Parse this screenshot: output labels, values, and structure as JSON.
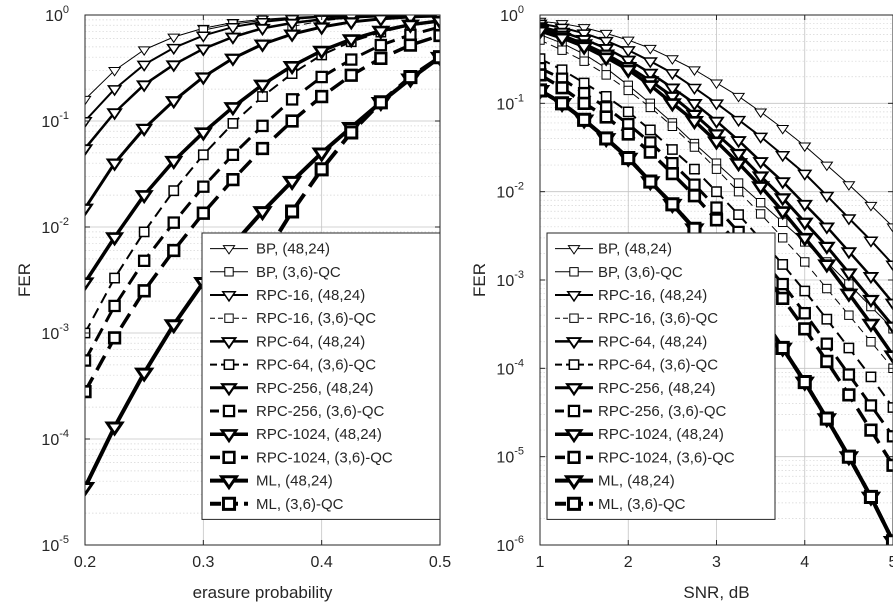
{
  "chart_data": [
    {
      "type": "line",
      "xlabel": "erasure probability",
      "ylabel": "FER",
      "xscale": "linear",
      "yscale": "log",
      "xlim": [
        0.2,
        0.5
      ],
      "ylim": [
        1e-05,
        1
      ],
      "grid": true,
      "legend_position": "bottom-right",
      "x_ticks": [
        "0.2",
        "0.3",
        "0.4",
        "0.5"
      ],
      "y_ticks": [
        {
          "base": "10",
          "exp": "-5"
        },
        {
          "base": "10",
          "exp": "-4"
        },
        {
          "base": "10",
          "exp": "-3"
        },
        {
          "base": "10",
          "exp": "-2"
        },
        {
          "base": "10",
          "exp": "-1"
        },
        {
          "base": "10",
          "exp": "0"
        }
      ],
      "series": [
        {
          "name": "BP, (48,24)",
          "marker": "triangle-down",
          "dashed": false,
          "weight": 1,
          "x": [
            0.2,
            0.225,
            0.25,
            0.275,
            0.3,
            0.325,
            0.35,
            0.375,
            0.4,
            0.425,
            0.45,
            0.475,
            0.5
          ],
          "y": [
            0.16,
            0.3,
            0.47,
            0.62,
            0.75,
            0.85,
            0.91,
            0.95,
            0.975,
            0.987,
            0.994,
            0.997,
            0.999
          ]
        },
        {
          "name": "BP, (3,6)-QC",
          "marker": "square",
          "dashed": false,
          "weight": 1,
          "x": [
            0.3,
            0.325,
            0.35,
            0.375,
            0.4,
            0.425,
            0.45,
            0.475,
            0.5
          ],
          "y": [
            0.72,
            0.82,
            0.89,
            0.94,
            0.965,
            0.98,
            0.99,
            0.995,
            0.998
          ]
        },
        {
          "name": "RPC-16, (48,24)",
          "marker": "triangle-down",
          "dashed": false,
          "weight": 2,
          "x": [
            0.2,
            0.225,
            0.25,
            0.275,
            0.3,
            0.325,
            0.35,
            0.375,
            0.4,
            0.425,
            0.45,
            0.475,
            0.5
          ],
          "y": [
            0.1,
            0.2,
            0.34,
            0.49,
            0.64,
            0.77,
            0.86,
            0.92,
            0.96,
            0.98,
            0.99,
            0.995,
            0.998
          ]
        },
        {
          "name": "RPC-16, (3,6)-QC",
          "marker": "square",
          "dashed": true,
          "weight": 1,
          "x": [
            0.375,
            0.4,
            0.425,
            0.45,
            0.475,
            0.5
          ],
          "y": [
            0.78,
            0.88,
            0.94,
            0.97,
            0.985,
            0.993
          ]
        },
        {
          "name": "RPC-64, (48,24)",
          "marker": "triangle-down",
          "dashed": false,
          "weight": 2.5,
          "x": [
            0.2,
            0.225,
            0.25,
            0.275,
            0.3,
            0.325,
            0.35,
            0.375,
            0.4,
            0.425,
            0.45,
            0.475,
            0.5
          ],
          "y": [
            0.055,
            0.12,
            0.22,
            0.34,
            0.48,
            0.62,
            0.75,
            0.84,
            0.91,
            0.95,
            0.975,
            0.988,
            0.995
          ]
        },
        {
          "name": "RPC-64, (3,6)-QC",
          "marker": "square",
          "dashed": true,
          "weight": 2,
          "x": [
            0.2,
            0.225,
            0.25,
            0.275,
            0.3,
            0.325,
            0.35,
            0.375,
            0.4,
            0.425,
            0.45,
            0.475,
            0.5
          ],
          "y": [
            0.001,
            0.0033,
            0.009,
            0.022,
            0.048,
            0.095,
            0.17,
            0.28,
            0.42,
            0.56,
            0.69,
            0.8,
            0.88
          ]
        },
        {
          "name": "RPC-256, (48,24)",
          "marker": "triangle-down",
          "dashed": false,
          "weight": 3,
          "x": [
            0.2,
            0.225,
            0.25,
            0.275,
            0.3,
            0.325,
            0.35,
            0.375,
            0.4,
            0.425,
            0.45,
            0.475,
            0.5
          ],
          "y": [
            0.015,
            0.04,
            0.085,
            0.155,
            0.26,
            0.39,
            0.53,
            0.66,
            0.77,
            0.86,
            0.92,
            0.96,
            0.98
          ]
        },
        {
          "name": "RPC-256, (3,6)-QC",
          "marker": "square",
          "dashed": true,
          "weight": 3,
          "x": [
            0.2,
            0.225,
            0.25,
            0.275,
            0.3,
            0.325,
            0.35,
            0.375,
            0.4,
            0.425,
            0.45,
            0.475,
            0.5
          ],
          "y": [
            0.00055,
            0.0018,
            0.0048,
            0.011,
            0.024,
            0.048,
            0.09,
            0.16,
            0.26,
            0.38,
            0.52,
            0.65,
            0.77
          ]
        },
        {
          "name": "RPC-1024, (48,24)",
          "marker": "triangle-down",
          "dashed": false,
          "weight": 3.5,
          "x": [
            0.2,
            0.225,
            0.25,
            0.275,
            0.3,
            0.325,
            0.35,
            0.375,
            0.4,
            0.425,
            0.45,
            0.475,
            0.5
          ],
          "y": [
            0.003,
            0.008,
            0.02,
            0.042,
            0.078,
            0.135,
            0.22,
            0.33,
            0.46,
            0.59,
            0.71,
            0.81,
            0.88
          ]
        },
        {
          "name": "RPC-1024, (3,6)-QC",
          "marker": "square",
          "dashed": true,
          "weight": 3.5,
          "x": [
            0.2,
            0.225,
            0.25,
            0.275,
            0.3,
            0.325,
            0.35,
            0.375,
            0.4,
            0.425,
            0.45,
            0.475,
            0.5
          ],
          "y": [
            0.00028,
            0.0009,
            0.0025,
            0.006,
            0.0135,
            0.028,
            0.055,
            0.1,
            0.17,
            0.27,
            0.39,
            0.52,
            0.64
          ]
        },
        {
          "name": "ML, (48,24)",
          "marker": "triangle-down",
          "dashed": false,
          "weight": 4,
          "x": [
            0.2,
            0.225,
            0.25,
            0.275,
            0.3,
            0.325,
            0.35,
            0.375,
            0.4,
            0.425,
            0.45,
            0.475,
            0.5
          ],
          "y": [
            3.5e-05,
            0.00013,
            0.00042,
            0.0012,
            0.003,
            0.0068,
            0.014,
            0.027,
            0.05,
            0.087,
            0.15,
            0.25,
            0.4
          ]
        },
        {
          "name": "ML, (3,6)-QC",
          "marker": "square",
          "dashed": true,
          "weight": 4,
          "x": [
            0.325,
            0.35,
            0.375,
            0.4,
            0.425,
            0.45,
            0.475,
            0.5
          ],
          "y": [
            0.0011,
            0.005,
            0.014,
            0.035,
            0.078,
            0.15,
            0.26,
            0.4
          ]
        }
      ]
    },
    {
      "type": "line",
      "xlabel": "SNR, dB",
      "ylabel": "FER",
      "xscale": "linear",
      "yscale": "log",
      "xlim": [
        1,
        5
      ],
      "ylim": [
        1e-06,
        1
      ],
      "grid": true,
      "legend_position": "bottom-left",
      "x_ticks": [
        "1",
        "2",
        "3",
        "4",
        "5"
      ],
      "y_ticks": [
        {
          "base": "10",
          "exp": "-6"
        },
        {
          "base": "10",
          "exp": "-5"
        },
        {
          "base": "10",
          "exp": "-4"
        },
        {
          "base": "10",
          "exp": "-3"
        },
        {
          "base": "10",
          "exp": "-2"
        },
        {
          "base": "10",
          "exp": "-1"
        },
        {
          "base": "10",
          "exp": "0"
        }
      ],
      "series": [
        {
          "name": "BP, (48,24)",
          "marker": "triangle-down",
          "dashed": false,
          "weight": 1,
          "x": [
            1,
            1.25,
            1.5,
            1.75,
            2,
            2.25,
            2.5,
            2.75,
            3,
            3.25,
            3.5,
            3.75,
            4,
            4.25,
            4.5,
            4.75,
            5
          ],
          "y": [
            0.85,
            0.8,
            0.72,
            0.62,
            0.52,
            0.42,
            0.32,
            0.24,
            0.17,
            0.12,
            0.08,
            0.052,
            0.033,
            0.02,
            0.012,
            0.007,
            0.004
          ]
        },
        {
          "name": "BP, (3,6)-QC",
          "marker": "square",
          "dashed": false,
          "weight": 1,
          "x": [
            1,
            1.25,
            1.5,
            1.75,
            2,
            2.25,
            2.5,
            2.75,
            3,
            3.25,
            3.5,
            3.75,
            4,
            4.25,
            4.5,
            4.75,
            5
          ],
          "y": [
            0.6,
            0.48,
            0.36,
            0.25,
            0.16,
            0.1,
            0.06,
            0.035,
            0.021,
            0.0125,
            0.0075,
            0.0045,
            0.0027,
            0.0016,
            0.0009,
            0.0005,
            0.00028
          ]
        },
        {
          "name": "RPC-16, (48,24)",
          "marker": "triangle-down",
          "dashed": false,
          "weight": 2,
          "x": [
            1,
            1.25,
            1.5,
            1.75,
            2,
            2.25,
            2.5,
            2.75,
            3,
            3.25,
            3.5,
            3.75,
            4,
            4.25,
            4.5,
            4.75,
            5
          ],
          "y": [
            0.8,
            0.72,
            0.62,
            0.51,
            0.4,
            0.3,
            0.22,
            0.15,
            0.1,
            0.065,
            0.042,
            0.026,
            0.016,
            0.009,
            0.005,
            0.0028,
            0.0015
          ]
        },
        {
          "name": "RPC-16, (3,6)-QC",
          "marker": "square",
          "dashed": true,
          "weight": 1,
          "x": [
            1,
            1.25,
            1.5,
            1.75,
            2,
            2.25,
            2.5,
            2.75,
            3,
            3.25,
            3.5,
            3.75,
            4,
            4.25,
            4.5,
            4.75,
            5
          ],
          "y": [
            0.52,
            0.4,
            0.3,
            0.21,
            0.14,
            0.09,
            0.055,
            0.032,
            0.018,
            0.01,
            0.0056,
            0.003,
            0.0016,
            0.0008,
            0.0004,
            0.0002,
            0.0001
          ]
        },
        {
          "name": "RPC-64, (48,24)",
          "marker": "triangle-down",
          "dashed": false,
          "weight": 2.5,
          "x": [
            1,
            1.25,
            1.5,
            1.75,
            2,
            2.25,
            2.5,
            2.75,
            3,
            3.25,
            3.5,
            3.75,
            4,
            4.25,
            4.5,
            4.75,
            5
          ],
          "y": [
            0.74,
            0.64,
            0.53,
            0.42,
            0.31,
            0.22,
            0.15,
            0.1,
            0.063,
            0.038,
            0.022,
            0.013,
            0.0072,
            0.004,
            0.0021,
            0.0011,
            0.00055
          ]
        },
        {
          "name": "RPC-64, (3,6)-QC",
          "marker": "square",
          "dashed": true,
          "weight": 2,
          "x": [
            1,
            1.25,
            1.5,
            1.75,
            2,
            2.25,
            2.5,
            2.75,
            3,
            3.25,
            3.5,
            3.75,
            4,
            4.25,
            4.5,
            4.75,
            5
          ],
          "y": [
            0.32,
            0.24,
            0.17,
            0.12,
            0.08,
            0.05,
            0.03,
            0.018,
            0.01,
            0.0055,
            0.0029,
            0.0015,
            0.00075,
            0.00036,
            0.00017,
            8e-05,
            3.6e-05
          ]
        },
        {
          "name": "RPC-256, (48,24)",
          "marker": "triangle-down",
          "dashed": false,
          "weight": 3,
          "x": [
            1,
            1.25,
            1.5,
            1.75,
            2,
            2.25,
            2.5,
            2.75,
            3,
            3.25,
            3.5,
            3.75,
            4,
            4.25,
            4.5,
            4.75,
            5
          ],
          "y": [
            0.7,
            0.59,
            0.47,
            0.36,
            0.26,
            0.18,
            0.12,
            0.075,
            0.045,
            0.027,
            0.015,
            0.0085,
            0.0045,
            0.0024,
            0.0012,
            0.0006,
            0.0003
          ]
        },
        {
          "name": "RPC-256, (3,6)-QC",
          "marker": "square",
          "dashed": true,
          "weight": 3,
          "x": [
            1,
            1.25,
            1.5,
            1.75,
            2,
            2.25,
            2.5,
            2.75,
            3,
            3.25,
            3.5,
            3.75,
            4,
            4.25,
            4.5,
            4.75,
            5
          ],
          "y": [
            0.25,
            0.19,
            0.13,
            0.09,
            0.058,
            0.036,
            0.021,
            0.012,
            0.0066,
            0.0035,
            0.0018,
            0.0009,
            0.00042,
            0.00019,
            8.5e-05,
            3.8e-05,
            1.7e-05
          ]
        },
        {
          "name": "RPC-1024, (48,24)",
          "marker": "triangle-down",
          "dashed": false,
          "weight": 3.5,
          "x": [
            1,
            1.25,
            1.5,
            1.75,
            2,
            2.25,
            2.5,
            2.75,
            3,
            3.25,
            3.5,
            3.75,
            4,
            4.25,
            4.5,
            4.75,
            5
          ],
          "y": [
            0.66,
            0.55,
            0.44,
            0.33,
            0.24,
            0.16,
            0.1,
            0.063,
            0.037,
            0.021,
            0.0115,
            0.006,
            0.003,
            0.0015,
            0.0007,
            0.00032,
            0.00014
          ]
        },
        {
          "name": "RPC-1024, (3,6)-QC",
          "marker": "square",
          "dashed": true,
          "weight": 3.5,
          "x": [
            1,
            1.25,
            1.5,
            1.75,
            2,
            2.25,
            2.5,
            2.75,
            3,
            3.25,
            3.5,
            3.75,
            4,
            4.25,
            4.5,
            4.75,
            5
          ],
          "y": [
            0.21,
            0.15,
            0.1,
            0.07,
            0.045,
            0.028,
            0.016,
            0.009,
            0.0048,
            0.0025,
            0.0013,
            0.00062,
            0.00028,
            0.00012,
            5e-05,
            2e-05,
            8e-06
          ]
        },
        {
          "name": "ML, (48,24)",
          "marker": "triangle-down",
          "dashed": false,
          "weight": 4,
          "x": [
            1,
            1.25,
            1.5,
            1.75,
            2,
            2.25,
            2.5,
            2.75,
            3,
            3.25,
            3.5,
            3.75,
            4,
            4.25,
            4.5,
            4.75,
            5
          ],
          "y": [
            0.14,
            0.1,
            0.065,
            0.04,
            0.024,
            0.013,
            0.0072,
            0.0038,
            0.0019,
            0.0009,
            0.0004,
            0.00017,
            7e-05,
            2.7e-05,
            1e-05,
            3.5e-06,
            1.1e-06
          ]
        },
        {
          "name": "ML, (3,6)-QC",
          "marker": "square",
          "dashed": true,
          "weight": 4,
          "x": [
            1,
            1.25,
            1.5,
            1.75,
            2,
            2.25,
            2.5,
            2.75,
            3,
            3.25,
            3.5,
            3.75,
            4,
            4.25,
            4.5,
            4.75,
            5
          ],
          "y": [
            0.14,
            0.1,
            0.065,
            0.04,
            0.024,
            0.013,
            0.0072,
            0.0038,
            0.0019,
            0.0009,
            0.0004,
            0.00017,
            7e-05,
            2.7e-05,
            1e-05,
            3.5e-06,
            1.1e-06
          ]
        }
      ]
    }
  ]
}
